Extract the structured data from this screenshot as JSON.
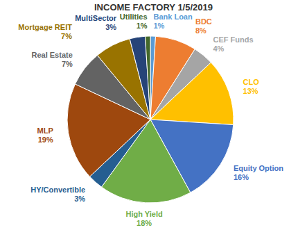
{
  "chart_data": {
    "type": "pie",
    "title": "INCOME FACTORY 1/5/2019",
    "categories": [
      "Bank Loan",
      "BDC",
      "CEF Funds",
      "CLO",
      "Equity Option",
      "High Yield",
      "HY/Convertible",
      "MLP",
      "Real Estate",
      "Mortgage REIT",
      "MultiSector",
      "Utilities"
    ],
    "values": [
      1,
      8,
      4,
      13,
      16,
      18,
      3,
      19,
      7,
      7,
      3,
      1
    ],
    "value_labels": [
      "1%",
      "8%",
      "4%",
      "13%",
      "16%",
      "18%",
      "3%",
      "19%",
      "7%",
      "7%",
      "3%",
      "1%"
    ],
    "colors": [
      "#5b9bd5",
      "#ed7d31",
      "#a5a5a5",
      "#ffc000",
      "#4472c4",
      "#70ad47",
      "#255e91",
      "#9e480e",
      "#636363",
      "#997300",
      "#264478",
      "#43682b"
    ],
    "data_labels": true
  }
}
